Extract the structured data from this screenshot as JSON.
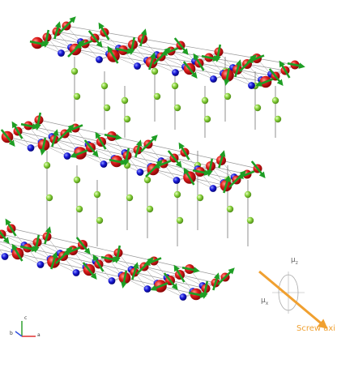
{
  "labels": {
    "mu_z_main": "μ",
    "mu_z_sub": "z",
    "mu_x_main": "μ",
    "mu_x_sub": "x",
    "screw_axis": "Screw axi",
    "axis_b": "b",
    "axis_c": "c",
    "axis_a": "a"
  },
  "colors": {
    "atom_red": "#e02020",
    "atom_blue": "#1a1ae0",
    "atom_green": "#86d13a",
    "moment_arrow": "#1e9e24",
    "bond": "#9a9a9a",
    "screw_arrow": "#f0a030",
    "axis_a": "#e03030",
    "axis_b": "#3050e0",
    "axis_c": "#30a030"
  },
  "icons": [
    "red-atom-icon",
    "blue-atom-icon",
    "green-atom-icon",
    "spin-arrow-icon",
    "screw-axis-arrow-icon",
    "axis-triad-icon"
  ]
}
